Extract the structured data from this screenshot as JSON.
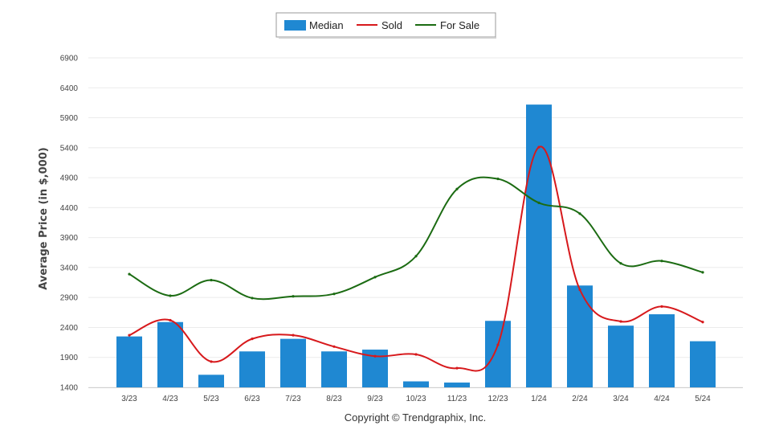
{
  "chart_data": {
    "type": "bar",
    "title": "",
    "xlabel": "",
    "ylabel": "Average Price (in $,000)",
    "ylim": [
      1400,
      6900
    ],
    "yticks": [
      1400,
      1900,
      2400,
      2900,
      3400,
      3900,
      4400,
      4900,
      5400,
      5900,
      6400,
      6900
    ],
    "grid": true,
    "legend_position": "top-center",
    "categories": [
      "3/23",
      "4/23",
      "5/23",
      "6/23",
      "7/23",
      "8/23",
      "9/23",
      "10/23",
      "11/23",
      "12/23",
      "1/24",
      "2/24",
      "3/24",
      "4/24",
      "5/24"
    ],
    "series": [
      {
        "name": "Median",
        "kind": "bar",
        "color": "#1f88d2",
        "values": [
          2250,
          2490,
          1610,
          2000,
          2210,
          2000,
          2030,
          1500,
          1480,
          2510,
          6120,
          3100,
          2430,
          2620,
          2170
        ]
      },
      {
        "name": "Sold",
        "kind": "line",
        "color": "#d7191c",
        "values": [
          2270,
          2520,
          1830,
          2210,
          2270,
          2080,
          1920,
          1950,
          1720,
          2110,
          5410,
          3030,
          2500,
          2750,
          2490
        ]
      },
      {
        "name": "For Sale",
        "kind": "line",
        "color": "#1b6b12",
        "values": [
          3290,
          2930,
          3190,
          2890,
          2920,
          2960,
          3240,
          3590,
          4710,
          4880,
          4480,
          4300,
          3470,
          3510,
          3320
        ]
      }
    ],
    "footer": "Copyright © Trendgraphix, Inc."
  }
}
